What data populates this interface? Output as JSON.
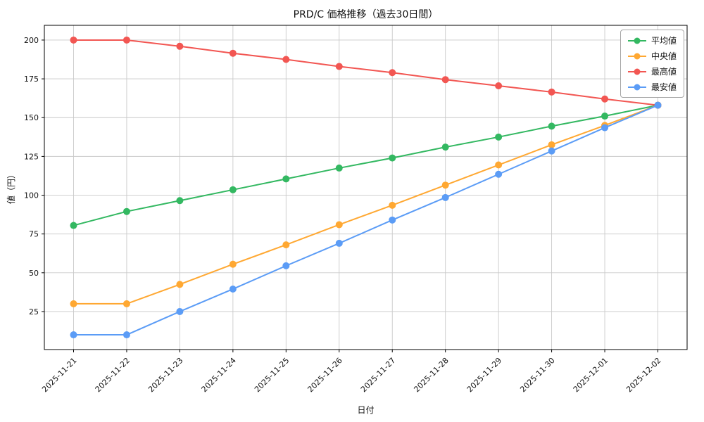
{
  "figure": {
    "background": "#ffffff",
    "grid_color": "#c9c9c9",
    "axis_color": "#000000",
    "text_color": "#111111"
  },
  "chart_data": {
    "type": "line",
    "title": "PRD/C 価格推移（過去30日間）",
    "xlabel": "日付",
    "ylabel": "値（円）",
    "categories": [
      "2025-11-21",
      "2025-11-22",
      "2025-11-23",
      "2025-11-24",
      "2025-11-25",
      "2025-11-26",
      "2025-11-27",
      "2025-11-28",
      "2025-11-29",
      "2025-11-30",
      "2025-12-01",
      "2025-12-02"
    ],
    "series": [
      {
        "key": "avg",
        "name": "平均値",
        "color": "#33b861",
        "values": [
          80.5,
          89.5,
          96.5,
          103.5,
          110.5,
          117.5,
          124,
          131,
          137.5,
          144.5,
          151,
          158
        ]
      },
      {
        "key": "median",
        "name": "中央値",
        "color": "#ffa832",
        "values": [
          30,
          30,
          42.5,
          55.5,
          68,
          81,
          93.5,
          106.5,
          119.5,
          132.5,
          145,
          158
        ]
      },
      {
        "key": "max",
        "name": "最高値",
        "color": "#f25652",
        "values": [
          200,
          200,
          196,
          191.5,
          187.5,
          183,
          179,
          174.5,
          170.5,
          166.5,
          162,
          158
        ]
      },
      {
        "key": "min",
        "name": "最安値",
        "color": "#5b9cf6",
        "values": [
          10,
          10,
          25,
          39.5,
          54.5,
          69,
          84,
          98.5,
          113.5,
          128.5,
          143.5,
          158
        ]
      }
    ],
    "y_ticks": [
      25,
      50,
      75,
      100,
      125,
      150,
      175,
      200
    ],
    "ylim": [
      0.5,
      209.5
    ],
    "x_margin": 0.55,
    "grid": true,
    "legend_position": "upper right"
  }
}
